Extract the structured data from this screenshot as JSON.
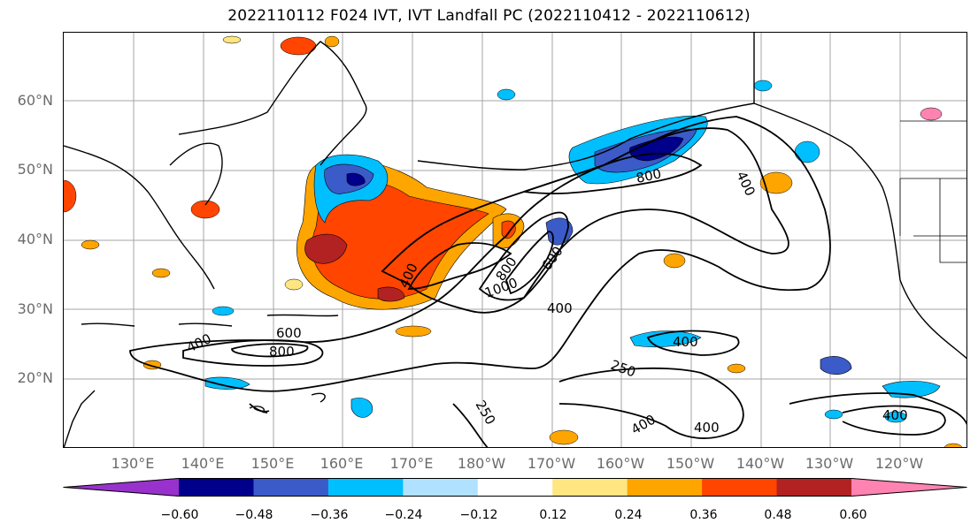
{
  "title": "2022110112 F024 IVT, IVT Landfall PC (2022110412 - 2022110612)",
  "lat_labels": [
    "60°N",
    "50°N",
    "40°N",
    "30°N",
    "20°N"
  ],
  "lon_labels": [
    "130°E",
    "140°E",
    "150°E",
    "160°E",
    "170°E",
    "180°W",
    "170°W",
    "160°W",
    "150°W",
    "140°W",
    "130°W",
    "120°W"
  ],
  "contour_labels": [
    "400",
    "600",
    "800",
    "400",
    "1000",
    "800",
    "600",
    "400",
    "800",
    "400",
    "400",
    "250",
    "250",
    "400",
    "400",
    "400"
  ],
  "colorbar": {
    "ticks": [
      "−0.60",
      "−0.48",
      "−0.36",
      "−0.24",
      "−0.12",
      "0.12",
      "0.24",
      "0.36",
      "0.48",
      "0.60"
    ],
    "colors": [
      "#9932cc",
      "#00008b",
      "#3b5bc9",
      "#00bfff",
      "#b0e2ff",
      "#ffffff",
      "#ffe680",
      "#ffa500",
      "#ff4500",
      "#b22222",
      "#ff83b0"
    ]
  },
  "colors": {
    "frame": "#000000",
    "grid": "#a6a6a6",
    "axis_text": "#6b6b6b"
  }
}
